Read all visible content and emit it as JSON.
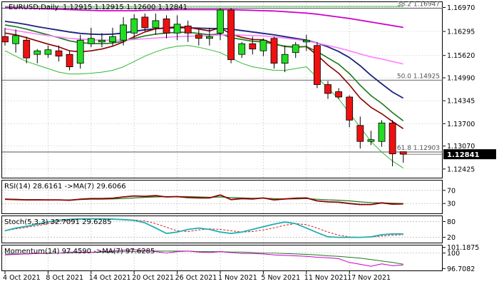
{
  "chart_data": {
    "type": "candlestick",
    "main": {
      "symbol_label": "EURUSD,Daily",
      "ohlc_label": "1.12915 1.12915 1.12600 1.12841",
      "last_price_label": "1.12841",
      "price_ticks": [
        "1.16970",
        "1.16295",
        "1.15620",
        "1.14990",
        "1.14345",
        "1.13700",
        "1.13070",
        "1.12425"
      ],
      "ylim": [
        1.1218,
        1.1712
      ],
      "fib_levels": [
        {
          "label": "38.2 1.16947",
          "value": 1.16947
        },
        {
          "label": "50.0 1.14925",
          "value": 1.14925
        },
        {
          "label": "61.8 1.12903",
          "value": 1.12903
        }
      ],
      "candles": [
        [
          1.1615,
          1.164,
          1.159,
          1.16
        ],
        [
          1.1595,
          1.1635,
          1.157,
          1.1618
        ],
        [
          1.1605,
          1.1615,
          1.154,
          1.1555
        ],
        [
          1.1565,
          1.158,
          1.154,
          1.1575
        ],
        [
          1.1565,
          1.159,
          1.1555,
          1.1578
        ],
        [
          1.1575,
          1.159,
          1.1545,
          1.156
        ],
        [
          1.1565,
          1.1575,
          1.152,
          1.153
        ],
        [
          1.154,
          1.162,
          1.1525,
          1.1605
        ],
        [
          1.1595,
          1.164,
          1.1585,
          1.161
        ],
        [
          1.16,
          1.1625,
          1.1585,
          1.1605
        ],
        [
          1.16,
          1.164,
          1.159,
          1.1615
        ],
        [
          1.1605,
          1.167,
          1.159,
          1.1648
        ],
        [
          1.1625,
          1.1678,
          1.161,
          1.1665
        ],
        [
          1.167,
          1.168,
          1.163,
          1.164
        ],
        [
          1.164,
          1.168,
          1.162,
          1.166
        ],
        [
          1.1665,
          1.1675,
          1.161,
          1.1625
        ],
        [
          1.1625,
          1.1675,
          1.1605,
          1.165
        ],
        [
          1.1645,
          1.166,
          1.16,
          1.1625
        ],
        [
          1.162,
          1.1635,
          1.159,
          1.161
        ],
        [
          1.161,
          1.164,
          1.159,
          1.1615
        ],
        [
          1.1625,
          1.1695,
          1.1605,
          1.169
        ],
        [
          1.169,
          1.1695,
          1.154,
          1.155
        ],
        [
          1.1565,
          1.16,
          1.1555,
          1.1595
        ],
        [
          1.1595,
          1.1615,
          1.1565,
          1.158
        ],
        [
          1.1575,
          1.161,
          1.156,
          1.1605
        ],
        [
          1.161,
          1.1615,
          1.1525,
          1.154
        ],
        [
          1.154,
          1.159,
          1.1515,
          1.1565
        ],
        [
          1.157,
          1.16,
          1.1555,
          1.1592
        ],
        [
          1.16,
          1.162,
          1.1575,
          1.1605
        ],
        [
          1.159,
          1.16,
          1.147,
          1.148
        ],
        [
          1.148,
          1.149,
          1.144,
          1.1455
        ],
        [
          1.146,
          1.147,
          1.144,
          1.1445
        ],
        [
          1.1445,
          1.145,
          1.136,
          1.138
        ],
        [
          1.1365,
          1.139,
          1.13,
          1.132
        ],
        [
          1.132,
          1.135,
          1.131,
          1.1325
        ],
        [
          1.132,
          1.138,
          1.1305,
          1.1372
        ],
        [
          1.1372,
          1.138,
          1.125,
          1.1285
        ],
        [
          1.1291,
          1.1291,
          1.126,
          1.1284
        ]
      ],
      "ma_series": [
        {
          "color": "#1a237e",
          "values": [
            1.1658,
            1.1654,
            1.1649,
            1.1643,
            1.1638,
            1.1633,
            1.1628,
            1.1624,
            1.1622,
            1.1621,
            1.1622,
            1.1625,
            1.163,
            1.1634,
            1.1637,
            1.1639,
            1.164,
            1.164,
            1.1639,
            1.1638,
            1.1638,
            1.1636,
            1.1632,
            1.1628,
            1.1624,
            1.162,
            1.1615,
            1.161,
            1.1605,
            1.1597,
            1.1586,
            1.1573,
            1.1556,
            1.1533,
            1.1506,
            1.1482,
            1.1459,
            1.1442
          ]
        },
        {
          "color": "#8b0000",
          "values": [
            1.1625,
            1.162,
            1.1612,
            1.1603,
            1.1594,
            1.1586,
            1.1575,
            1.1572,
            1.1575,
            1.158,
            1.1588,
            1.16,
            1.1615,
            1.1628,
            1.1637,
            1.164,
            1.1643,
            1.1641,
            1.1636,
            1.1631,
            1.164,
            1.1622,
            1.1613,
            1.1607,
            1.1606,
            1.1595,
            1.1587,
            1.1585,
            1.1587,
            1.1563,
            1.1535,
            1.1512,
            1.1479,
            1.1442,
            1.1416,
            1.1398,
            1.1376,
            1.1356
          ]
        },
        {
          "color": "#1b7a1b",
          "values": [
            1.1648,
            1.1643,
            1.1636,
            1.1628,
            1.162,
            1.1612,
            1.1603,
            1.1598,
            1.1596,
            1.1595,
            1.1597,
            1.1602,
            1.161,
            1.1617,
            1.1622,
            1.1625,
            1.1627,
            1.1627,
            1.1624,
            1.162,
            1.1623,
            1.1612,
            1.1607,
            1.1602,
            1.16,
            1.1594,
            1.1588,
            1.1586,
            1.1587,
            1.1573,
            1.1555,
            1.1537,
            1.1511,
            1.1478,
            1.1449,
            1.1427,
            1.1401,
            1.1378
          ]
        },
        {
          "color": "#cc00cc",
          "values": [
            1.1697,
            1.1696,
            1.1695,
            1.1694,
            1.1693,
            1.1692,
            1.1691,
            1.169,
            1.1689,
            1.1688,
            1.1688,
            1.1688,
            1.1688,
            1.1689,
            1.169,
            1.169,
            1.1691,
            1.1691,
            1.1691,
            1.1691,
            1.1691,
            1.1691,
            1.169,
            1.1689,
            1.1688,
            1.1687,
            1.1685,
            1.1683,
            1.1681,
            1.1678,
            1.1674,
            1.167,
            1.1666,
            1.1661,
            1.1656,
            1.1651,
            1.1646,
            1.1641
          ]
        },
        {
          "color": "#ff80ff",
          "values": [
            1.1637,
            1.1632,
            1.1627,
            1.1622,
            1.1618,
            1.1614,
            1.161,
            1.1608,
            1.1606,
            1.1605,
            1.1605,
            1.1605,
            1.1607,
            1.1609,
            1.1611,
            1.1613,
            1.1615,
            1.1616,
            1.1617,
            1.1618,
            1.162,
            1.162,
            1.1619,
            1.1618,
            1.1617,
            1.1614,
            1.1611,
            1.1607,
            1.1603,
            1.1597,
            1.159,
            1.1583,
            1.1575,
            1.1566,
            1.1558,
            1.1552,
            1.1545,
            1.1538
          ]
        }
      ],
      "bands": {
        "color": "#33b833",
        "upper": [
          1.17,
          1.17,
          1.17,
          1.17,
          1.17,
          1.17,
          1.17,
          1.17,
          1.17,
          1.17,
          1.17,
          1.17,
          1.17,
          1.17,
          1.17,
          1.17,
          1.17,
          1.17,
          1.17,
          1.17,
          1.17,
          1.17,
          1.17,
          1.17,
          1.17,
          1.17,
          1.17,
          1.17,
          1.17,
          1.17,
          1.17,
          1.17,
          1.17,
          1.17,
          1.17,
          1.17,
          1.17,
          1.17
        ],
        "lower": [
          1.1575,
          1.156,
          1.1545,
          1.1535,
          1.1525,
          1.1515,
          1.151,
          1.151,
          1.1512,
          1.1515,
          1.152,
          1.153,
          1.1545,
          1.156,
          1.1572,
          1.1582,
          1.1588,
          1.159,
          1.1585,
          1.1578,
          1.157,
          1.1555,
          1.154,
          1.153,
          1.1525,
          1.152,
          1.152,
          1.1525,
          1.153,
          1.15,
          1.147,
          1.144,
          1.14,
          1.136,
          1.132,
          1.129,
          1.1265,
          1.1245
        ]
      },
      "x_labels": [
        {
          "text": "4 Oct 2021",
          "index": 0
        },
        {
          "text": "8 Oct 2021",
          "index": 4
        },
        {
          "text": "14 Oct 2021",
          "index": 8
        },
        {
          "text": "20 Oct 2021",
          "index": 12
        },
        {
          "text": "26 Oct 2021",
          "index": 16
        },
        {
          "text": "1 Nov 2021",
          "index": 20
        },
        {
          "text": "5 Nov 2021",
          "index": 24
        },
        {
          "text": "11 Nov 2021",
          "index": 28
        },
        {
          "text": "17 Nov 2021",
          "index": 32
        }
      ]
    },
    "rsi": {
      "label": "RSI(14) 28.6161 ->MA(7) 29.6066",
      "ticks": [
        "70",
        "30"
      ],
      "ylim": [
        0,
        100
      ],
      "rsi": [
        43,
        42,
        41,
        41,
        41,
        41,
        40,
        43,
        45,
        45,
        46,
        50,
        53,
        52,
        54,
        50,
        51,
        48,
        47,
        47,
        56,
        42,
        45,
        44,
        47,
        41,
        44,
        46,
        47,
        38,
        35,
        34,
        30,
        27,
        27,
        32,
        28,
        29
      ],
      "ma": [
        44,
        43,
        42,
        42,
        41,
        41,
        41,
        42,
        43,
        43,
        44,
        45,
        47,
        49,
        50,
        51,
        51,
        51,
        50,
        49,
        50,
        48,
        47,
        46,
        46,
        45,
        44,
        44,
        45,
        43,
        41,
        40,
        38,
        35,
        33,
        32,
        31,
        30
      ]
    },
    "stoch": {
      "label": "Stoch(5,3,3) 32.7091 29.6285",
      "ticks": [
        "80",
        "20"
      ],
      "ylim": [
        0,
        100
      ],
      "main": [
        45,
        55,
        62,
        70,
        78,
        85,
        88,
        90,
        90,
        90,
        89,
        87,
        84,
        75,
        55,
        35,
        40,
        50,
        55,
        50,
        40,
        35,
        40,
        50,
        60,
        70,
        78,
        72,
        55,
        38,
        22,
        20,
        20,
        20,
        22,
        30,
        33,
        33
      ],
      "signal": [
        45,
        52,
        58,
        64,
        72,
        80,
        84,
        88,
        89,
        90,
        90,
        88,
        86,
        82,
        72,
        58,
        45,
        42,
        48,
        52,
        50,
        45,
        40,
        42,
        48,
        56,
        66,
        72,
        68,
        55,
        40,
        28,
        22,
        20,
        21,
        25,
        28,
        30
      ]
    },
    "momentum": {
      "label": "Momentum(14) 97.4590 ->MA(7) 97.6285",
      "ticks": [
        "101.1875",
        "100",
        "96.7082"
      ],
      "ylim": [
        96.3,
        101.6
      ],
      "momentum": [
        99.6,
        99.7,
        99.8,
        99.9,
        100.0,
        100.0,
        100.2,
        100.2,
        100.1,
        100.3,
        100.4,
        100.6,
        100.7,
        100.5,
        100.3,
        100.0,
        100.3,
        100.4,
        100.2,
        100.1,
        100.3,
        100.1,
        99.9,
        99.9,
        99.8,
        99.6,
        99.5,
        99.4,
        99.3,
        99.1,
        99.0,
        98.8,
        98.0,
        97.6,
        97.2,
        97.7,
        97.3,
        97.46
      ],
      "ma": [
        99.8,
        99.8,
        99.8,
        99.9,
        99.9,
        100.0,
        100.0,
        100.1,
        100.1,
        100.2,
        100.2,
        100.3,
        100.3,
        100.4,
        100.4,
        100.4,
        100.4,
        100.4,
        100.3,
        100.3,
        100.3,
        100.2,
        100.2,
        100.1,
        100.0,
        100.0,
        99.9,
        99.8,
        99.7,
        99.6,
        99.4,
        99.3,
        99.1,
        98.9,
        98.6,
        98.3,
        98.0,
        97.63
      ]
    }
  }
}
